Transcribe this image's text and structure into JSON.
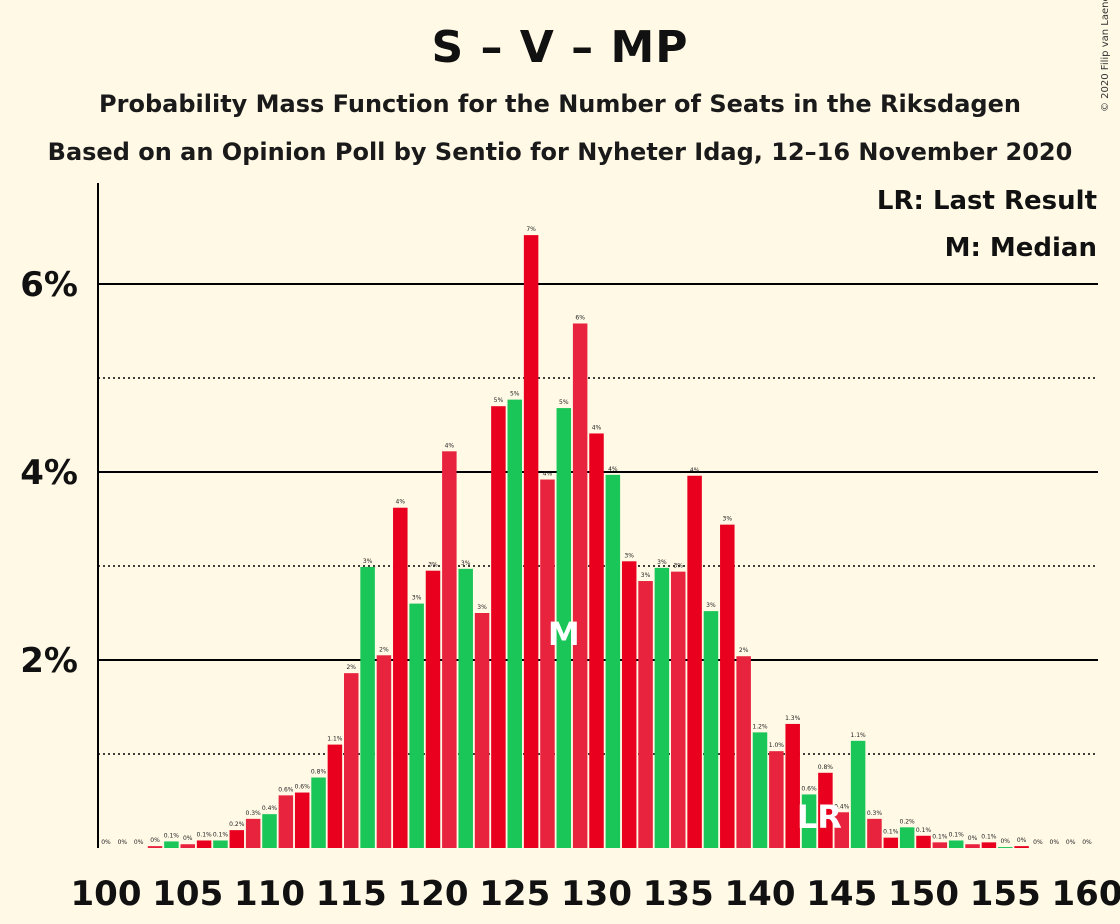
{
  "title": "S – V – MP",
  "subtitle1": "Probability Mass Function for the Number of Seats in the Riksdagen",
  "subtitle2": "Based on an Opinion Poll by Sentio for Nyheter Idag, 12–16 November 2020",
  "copyright": "© 2020 Filip van Laenen",
  "colors": {
    "background": "#fff9e6",
    "bar_even": "#e8001e",
    "bar_odd": "#e8233e",
    "bar_green": "#19c657",
    "grid": "#000000"
  },
  "chart_data": {
    "type": "bar",
    "xlabel": "",
    "ylabel": "",
    "x_ticks": [
      100,
      105,
      110,
      115,
      120,
      125,
      130,
      135,
      140,
      145,
      150,
      155,
      160
    ],
    "y_ticks": [
      {
        "value": 2,
        "label": "2%"
      },
      {
        "value": 4,
        "label": "4%"
      },
      {
        "value": 6,
        "label": "6%"
      }
    ],
    "ylim": [
      0,
      7
    ],
    "gridlines_solid": [
      2,
      4,
      6
    ],
    "gridlines_dotted": [
      1,
      3,
      5
    ],
    "legend": {
      "position": "top-right",
      "entries": [
        "LR: Last Result",
        "M: Median"
      ]
    },
    "median": 128,
    "median_marker": "M",
    "last_result": 144,
    "last_result_marker": "LR",
    "bars": [
      {
        "seats": 100,
        "value": 0.0,
        "label": "0%",
        "color": "red"
      },
      {
        "seats": 101,
        "value": 0.0,
        "label": "0%",
        "color": "red"
      },
      {
        "seats": 102,
        "value": 0.0,
        "label": "0%",
        "color": "red"
      },
      {
        "seats": 103,
        "value": 0.02,
        "label": "0%",
        "color": "red"
      },
      {
        "seats": 104,
        "value": 0.07,
        "label": "0.1%",
        "color": "green"
      },
      {
        "seats": 105,
        "value": 0.04,
        "label": "0%",
        "color": "red"
      },
      {
        "seats": 106,
        "value": 0.08,
        "label": "0.1%",
        "color": "red"
      },
      {
        "seats": 107,
        "value": 0.08,
        "label": "0.1%",
        "color": "green"
      },
      {
        "seats": 108,
        "value": 0.19,
        "label": "0.2%",
        "color": "red"
      },
      {
        "seats": 109,
        "value": 0.31,
        "label": "0.3%",
        "color": "red"
      },
      {
        "seats": 110,
        "value": 0.36,
        "label": "0.4%",
        "color": "green"
      },
      {
        "seats": 111,
        "value": 0.56,
        "label": "0.6%",
        "color": "red"
      },
      {
        "seats": 112,
        "value": 0.59,
        "label": "0.6%",
        "color": "red"
      },
      {
        "seats": 113,
        "value": 0.75,
        "label": "0.8%",
        "color": "green"
      },
      {
        "seats": 114,
        "value": 1.1,
        "label": "1.1%",
        "color": "red"
      },
      {
        "seats": 115,
        "value": 1.86,
        "label": "2%",
        "color": "red"
      },
      {
        "seats": 116,
        "value": 2.99,
        "label": "3%",
        "color": "green"
      },
      {
        "seats": 117,
        "value": 2.05,
        "label": "2%",
        "color": "red"
      },
      {
        "seats": 118,
        "value": 3.62,
        "label": "4%",
        "color": "red"
      },
      {
        "seats": 119,
        "value": 2.6,
        "label": "3%",
        "color": "green"
      },
      {
        "seats": 120,
        "value": 2.95,
        "label": "3%",
        "color": "red"
      },
      {
        "seats": 121,
        "value": 4.22,
        "label": "4%",
        "color": "red"
      },
      {
        "seats": 122,
        "value": 2.97,
        "label": "3%",
        "color": "green"
      },
      {
        "seats": 123,
        "value": 2.5,
        "label": "3%",
        "color": "red"
      },
      {
        "seats": 124,
        "value": 4.7,
        "label": "5%",
        "color": "red"
      },
      {
        "seats": 125,
        "value": 4.77,
        "label": "5%",
        "color": "green"
      },
      {
        "seats": 126,
        "value": 6.52,
        "label": "7%",
        "color": "red"
      },
      {
        "seats": 127,
        "value": 3.92,
        "label": "4%",
        "color": "red"
      },
      {
        "seats": 128,
        "value": 4.68,
        "label": "5%",
        "color": "green"
      },
      {
        "seats": 129,
        "value": 5.58,
        "label": "6%",
        "color": "red"
      },
      {
        "seats": 130,
        "value": 4.41,
        "label": "4%",
        "color": "red"
      },
      {
        "seats": 131,
        "value": 3.97,
        "label": "4%",
        "color": "green"
      },
      {
        "seats": 132,
        "value": 3.05,
        "label": "3%",
        "color": "red"
      },
      {
        "seats": 133,
        "value": 2.84,
        "label": "3%",
        "color": "red"
      },
      {
        "seats": 134,
        "value": 2.98,
        "label": "3%",
        "color": "green"
      },
      {
        "seats": 135,
        "value": 2.94,
        "label": "3%",
        "color": "red"
      },
      {
        "seats": 136,
        "value": 3.96,
        "label": "4%",
        "color": "red"
      },
      {
        "seats": 137,
        "value": 2.52,
        "label": "3%",
        "color": "green"
      },
      {
        "seats": 138,
        "value": 3.44,
        "label": "3%",
        "color": "red"
      },
      {
        "seats": 139,
        "value": 2.04,
        "label": "2%",
        "color": "red"
      },
      {
        "seats": 140,
        "value": 1.23,
        "label": "1.2%",
        "color": "green"
      },
      {
        "seats": 141,
        "value": 1.03,
        "label": "1.0%",
        "color": "red"
      },
      {
        "seats": 142,
        "value": 1.32,
        "label": "1.3%",
        "color": "red"
      },
      {
        "seats": 143,
        "value": 0.57,
        "label": "0.6%",
        "color": "green"
      },
      {
        "seats": 144,
        "value": 0.8,
        "label": "0.8%",
        "color": "red"
      },
      {
        "seats": 145,
        "value": 0.38,
        "label": "0.4%",
        "color": "red"
      },
      {
        "seats": 146,
        "value": 1.14,
        "label": "1.1%",
        "color": "green"
      },
      {
        "seats": 147,
        "value": 0.31,
        "label": "0.3%",
        "color": "red"
      },
      {
        "seats": 148,
        "value": 0.11,
        "label": "0.1%",
        "color": "red"
      },
      {
        "seats": 149,
        "value": 0.22,
        "label": "0.2%",
        "color": "green"
      },
      {
        "seats": 150,
        "value": 0.13,
        "label": "0.1%",
        "color": "red"
      },
      {
        "seats": 151,
        "value": 0.06,
        "label": "0.1%",
        "color": "red"
      },
      {
        "seats": 152,
        "value": 0.08,
        "label": "0.1%",
        "color": "green"
      },
      {
        "seats": 153,
        "value": 0.04,
        "label": "0%",
        "color": "red"
      },
      {
        "seats": 154,
        "value": 0.06,
        "label": "0.1%",
        "color": "red"
      },
      {
        "seats": 155,
        "value": 0.01,
        "label": "0%",
        "color": "green"
      },
      {
        "seats": 156,
        "value": 0.02,
        "label": "0%",
        "color": "red"
      },
      {
        "seats": 157,
        "value": 0.0,
        "label": "0%",
        "color": "red"
      },
      {
        "seats": 158,
        "value": 0.0,
        "label": "0%",
        "color": "green"
      },
      {
        "seats": 159,
        "value": 0.0,
        "label": "0%",
        "color": "red"
      },
      {
        "seats": 160,
        "value": 0.0,
        "label": "0%",
        "color": "red"
      }
    ]
  }
}
